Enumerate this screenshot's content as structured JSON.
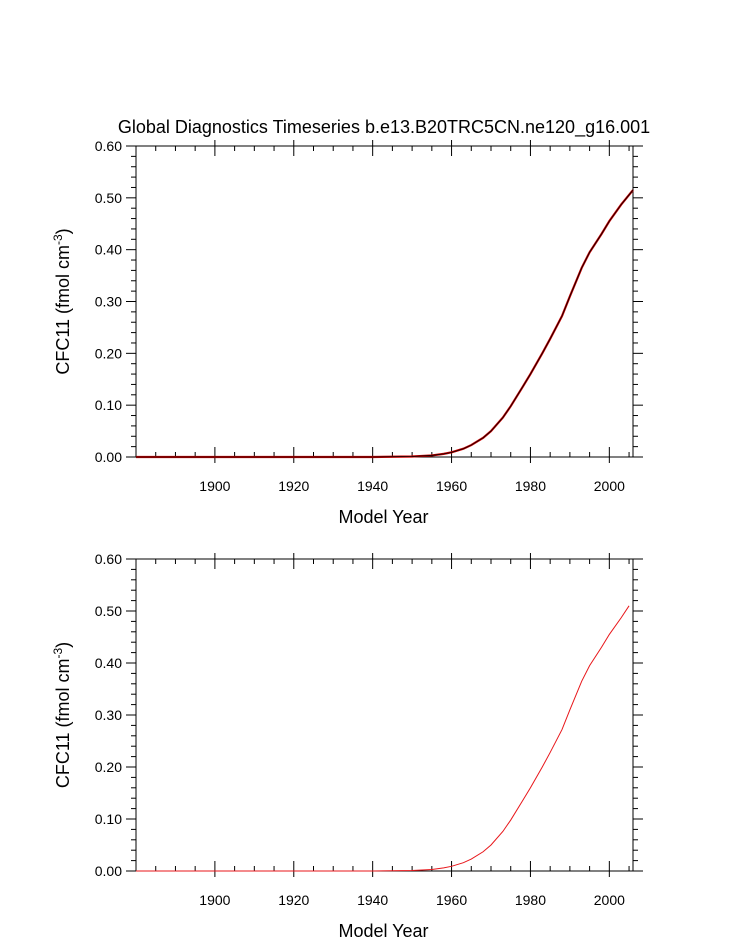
{
  "page_title": "Global Diagnostics Timeseries b.e13.B20TRC5CN.ne120_g16.001",
  "chart_data": [
    {
      "type": "line",
      "title": "Global Diagnostics Timeseries b.e13.B20TRC5CN.ne120_g16.001",
      "xlabel": "Model Year",
      "ylabel_main": "CFC11 (fmol cm",
      "ylabel_sup": "-3",
      "ylabel_close": ")",
      "xlim": [
        1880,
        2006
      ],
      "ylim": [
        0,
        0.6
      ],
      "xticks": [
        "1900",
        "1920",
        "1940",
        "1960",
        "1980",
        "2000"
      ],
      "yticks": [
        "0.00",
        "0.10",
        "0.20",
        "0.30",
        "0.40",
        "0.50",
        "0.60"
      ],
      "grid": false,
      "series": [
        {
          "color": "#cc0000",
          "overlay_color": "#000000",
          "x": [
            1880,
            1900,
            1920,
            1940,
            1950,
            1955,
            1958,
            1960,
            1963,
            1965,
            1968,
            1970,
            1973,
            1975,
            1978,
            1980,
            1983,
            1985,
            1988,
            1990,
            1993,
            1995,
            1998,
            2000,
            2003,
            2006
          ],
          "y": [
            0,
            0,
            0,
            0,
            0.001,
            0.003,
            0.006,
            0.009,
            0.016,
            0.023,
            0.037,
            0.05,
            0.076,
            0.098,
            0.135,
            0.16,
            0.2,
            0.228,
            0.272,
            0.31,
            0.365,
            0.395,
            0.43,
            0.455,
            0.487,
            0.515
          ]
        }
      ]
    },
    {
      "type": "line",
      "title": "",
      "xlabel": "Model Year",
      "ylabel_main": "CFC11 (fmol cm",
      "ylabel_sup": "-3",
      "ylabel_close": ")",
      "xlim": [
        1880,
        2006
      ],
      "ylim": [
        0,
        0.6
      ],
      "xticks": [
        "1900",
        "1920",
        "1940",
        "1960",
        "1980",
        "2000"
      ],
      "yticks": [
        "0.00",
        "0.10",
        "0.20",
        "0.30",
        "0.40",
        "0.50",
        "0.60"
      ],
      "grid": false,
      "series": [
        {
          "color": "#e8161a",
          "x": [
            1880,
            1900,
            1920,
            1940,
            1950,
            1955,
            1958,
            1960,
            1963,
            1965,
            1968,
            1970,
            1973,
            1975,
            1978,
            1980,
            1983,
            1985,
            1988,
            1990,
            1993,
            1995,
            1998,
            2000,
            2003,
            2005
          ],
          "y": [
            0,
            0,
            0,
            0,
            0.001,
            0.003,
            0.006,
            0.009,
            0.016,
            0.023,
            0.037,
            0.05,
            0.076,
            0.098,
            0.135,
            0.16,
            0.2,
            0.228,
            0.272,
            0.31,
            0.365,
            0.395,
            0.43,
            0.455,
            0.487,
            0.51
          ]
        }
      ]
    }
  ]
}
